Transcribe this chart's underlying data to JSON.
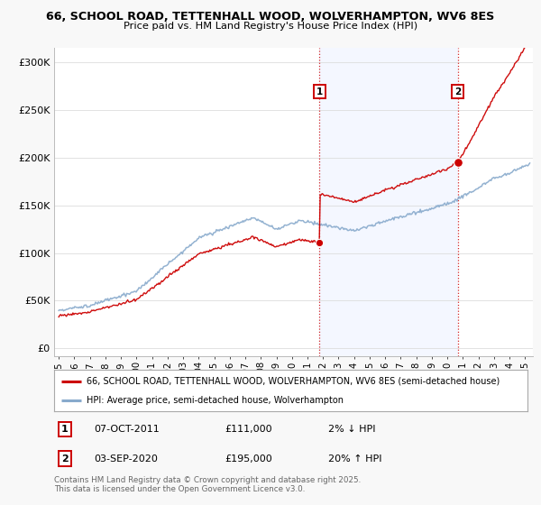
{
  "title1": "66, SCHOOL ROAD, TETTENHALL WOOD, WOLVERHAMPTON, WV6 8ES",
  "title2": "Price paid vs. HM Land Registry's House Price Index (HPI)",
  "background_color": "#f8f8f8",
  "plot_bg": "#ffffff",
  "legend1": "66, SCHOOL ROAD, TETTENHALL WOOD, WOLVERHAMPTON, WV6 8ES (semi-detached house)",
  "legend2": "HPI: Average price, semi-detached house, Wolverhampton",
  "annotation1_label": "1",
  "annotation1_date": "07-OCT-2011",
  "annotation1_price": "£111,000",
  "annotation1_hpi": "2% ↓ HPI",
  "annotation2_label": "2",
  "annotation2_date": "03-SEP-2020",
  "annotation2_price": "£195,000",
  "annotation2_hpi": "20% ↑ HPI",
  "footnote": "Contains HM Land Registry data © Crown copyright and database right 2025.\nThis data is licensed under the Open Government Licence v3.0.",
  "red_color": "#cc0000",
  "blue_color": "#88aacc",
  "yticks": [
    0,
    50000,
    100000,
    150000,
    200000,
    250000,
    300000
  ],
  "ytick_labels": [
    "£0",
    "£50K",
    "£100K",
    "£150K",
    "£200K",
    "£250K",
    "£300K"
  ],
  "xmin": 1994.7,
  "xmax": 2025.5,
  "ymin": -8000,
  "ymax": 315000,
  "sale1_x": 2011.77,
  "sale1_y": 111000,
  "sale2_x": 2020.67,
  "sale2_y": 195000,
  "shade_x1": 2011.77,
  "shade_x2": 2020.67
}
